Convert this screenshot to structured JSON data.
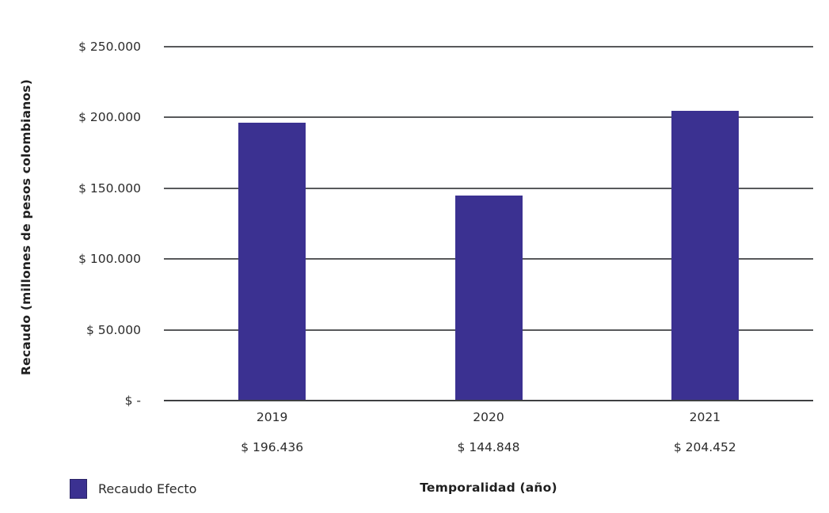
{
  "chart_data": {
    "type": "bar",
    "title": "",
    "categories": [
      "2019",
      "2020",
      "2021"
    ],
    "values": [
      196436,
      144848,
      204452
    ],
    "value_labels": [
      "$ 196.436",
      "$ 144.848",
      "$ 204.452"
    ],
    "series": [
      {
        "name": "Recaudo Efecto",
        "values": [
          196436,
          144848,
          204452
        ]
      }
    ],
    "xlabel": "Temporalidad (año)",
    "ylabel": "Recaudo (millones de pesos colombianos)",
    "ylim": [
      0,
      250000
    ],
    "ytick_interval": 50000,
    "ytick_labels": [
      "$ -",
      "$ 50.000",
      "$ 100.000",
      "$ 150.000",
      "$ 200.000",
      "$ 250.000"
    ],
    "grid": true,
    "legend_position": "bottom-left",
    "colors": {
      "bar": "#3B3191",
      "legend_swatch_border": "#2B2566",
      "gridline": "#58595B",
      "axis_line": "#3F4042",
      "text": "#2B2B2B"
    }
  },
  "legend": {
    "label": "Recaudo Efecto"
  }
}
